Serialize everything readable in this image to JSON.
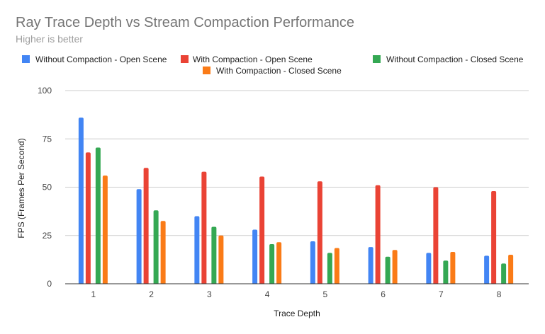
{
  "chart_data": {
    "type": "bar",
    "title": "Ray Trace Depth vs Stream Compaction Performance",
    "subtitle": "Higher is better",
    "xlabel": "Trace Depth",
    "ylabel": "FPS (Frames Per Second)",
    "ylim": [
      0,
      100
    ],
    "yticks": [
      0,
      25,
      50,
      75,
      100
    ],
    "grid": true,
    "legend_position": "top",
    "categories": [
      "1",
      "2",
      "3",
      "4",
      "5",
      "6",
      "7",
      "8"
    ],
    "series": [
      {
        "name": "Without Compaction - Open Scene",
        "color": "#4285f4",
        "values": [
          86,
          49,
          35,
          28,
          22,
          19,
          16,
          14.5
        ]
      },
      {
        "name": "With Compaction - Open Scene",
        "color": "#ea4335",
        "values": [
          68,
          60,
          58,
          55.5,
          53,
          51,
          50,
          48
        ]
      },
      {
        "name": "Without Compaction - Closed Scene",
        "color": "#34a853",
        "values": [
          70.5,
          38,
          29.5,
          20.5,
          16,
          14,
          12,
          10.5
        ]
      },
      {
        "name": "With Compaction - Closed Scene",
        "color": "#fa7b17",
        "values": [
          56,
          32.5,
          25,
          21.5,
          18.5,
          17.5,
          16.5,
          15
        ]
      }
    ]
  }
}
